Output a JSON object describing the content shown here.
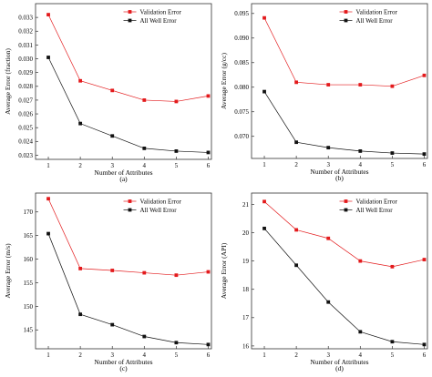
{
  "chart_data": [
    {
      "type": "line",
      "caption": "(a)",
      "xlabel": "Number of Attributes",
      "ylabel": "Average Error (fraction)",
      "x": [
        1,
        2,
        3,
        4,
        5,
        6
      ],
      "xticks": [
        "1",
        "2",
        "3",
        "4",
        "5",
        "6"
      ],
      "xlim": [
        0.6,
        6.1
      ],
      "ylim": [
        0.0227,
        0.034
      ],
      "yticks": [
        "0.023",
        "0.024",
        "0.025",
        "0.026",
        "0.027",
        "0.028",
        "0.029",
        "0.030",
        "0.031",
        "0.032",
        "0.033"
      ],
      "legend_position": "top-right",
      "grid": false,
      "series": [
        {
          "name": "Validation Error",
          "color": "#e31a1c",
          "marker": "square",
          "values": [
            0.0332,
            0.0284,
            0.0277,
            0.027,
            0.0269,
            0.0273
          ]
        },
        {
          "name": "All Well Error",
          "color": "#111111",
          "marker": "square",
          "values": [
            0.0301,
            0.0253,
            0.0244,
            0.0235,
            0.0233,
            0.0232
          ]
        }
      ]
    },
    {
      "type": "line",
      "caption": "(b)",
      "xlabel": "Number of Attributes",
      "ylabel": "Average Error (g/cc)",
      "x": [
        1,
        2,
        3,
        4,
        5,
        6
      ],
      "xticks": [
        "1",
        "2",
        "3",
        "4",
        "5",
        "6"
      ],
      "xlim": [
        0.6,
        6.1
      ],
      "ylim": [
        0.0655,
        0.097
      ],
      "yticks": [
        "0.070",
        "0.075",
        "0.080",
        "0.085",
        "0.090",
        "0.095"
      ],
      "legend_position": "top-right",
      "grid": false,
      "series": [
        {
          "name": "Validation Error",
          "color": "#e31a1c",
          "marker": "square",
          "values": [
            0.0941,
            0.081,
            0.0805,
            0.0805,
            0.0802,
            0.0824
          ]
        },
        {
          "name": "All Well Error",
          "color": "#111111",
          "marker": "square",
          "values": [
            0.0791,
            0.0688,
            0.0677,
            0.067,
            0.0666,
            0.0664
          ]
        }
      ]
    },
    {
      "type": "line",
      "caption": "(c)",
      "xlabel": "Number of Attributes",
      "ylabel": "Average Error (m/s)",
      "x": [
        1,
        2,
        3,
        4,
        5,
        6
      ],
      "xticks": [
        "1",
        "2",
        "3",
        "4",
        "5",
        "6"
      ],
      "xlim": [
        0.6,
        6.1
      ],
      "ylim": [
        141.0,
        174.0
      ],
      "yticks": [
        "145",
        "150",
        "155",
        "160",
        "165",
        "170"
      ],
      "legend_position": "top-right",
      "grid": false,
      "series": [
        {
          "name": "Validation Error",
          "color": "#e31a1c",
          "marker": "square",
          "values": [
            172.8,
            158.0,
            157.6,
            157.1,
            156.6,
            157.3
          ]
        },
        {
          "name": "All Well Error",
          "color": "#111111",
          "marker": "square",
          "values": [
            165.4,
            148.3,
            146.1,
            143.6,
            142.3,
            141.9
          ]
        }
      ]
    },
    {
      "type": "line",
      "caption": "(d)",
      "xlabel": "Number of Attributes",
      "ylabel": "Average Error (API)",
      "x": [
        1,
        2,
        3,
        4,
        5,
        6
      ],
      "xticks": [
        "1",
        "2",
        "3",
        "4",
        "5",
        "6"
      ],
      "xlim": [
        0.6,
        6.1
      ],
      "ylim": [
        15.9,
        21.4
      ],
      "yticks": [
        "16",
        "17",
        "18",
        "19",
        "20",
        "21"
      ],
      "legend_position": "top-right",
      "grid": false,
      "series": [
        {
          "name": "Validation Error",
          "color": "#e31a1c",
          "marker": "square",
          "values": [
            21.1,
            20.1,
            19.8,
            19.0,
            18.8,
            19.05
          ]
        },
        {
          "name": "All Well Error",
          "color": "#111111",
          "marker": "square",
          "values": [
            20.15,
            18.85,
            17.55,
            16.5,
            16.15,
            16.05
          ]
        }
      ]
    }
  ]
}
